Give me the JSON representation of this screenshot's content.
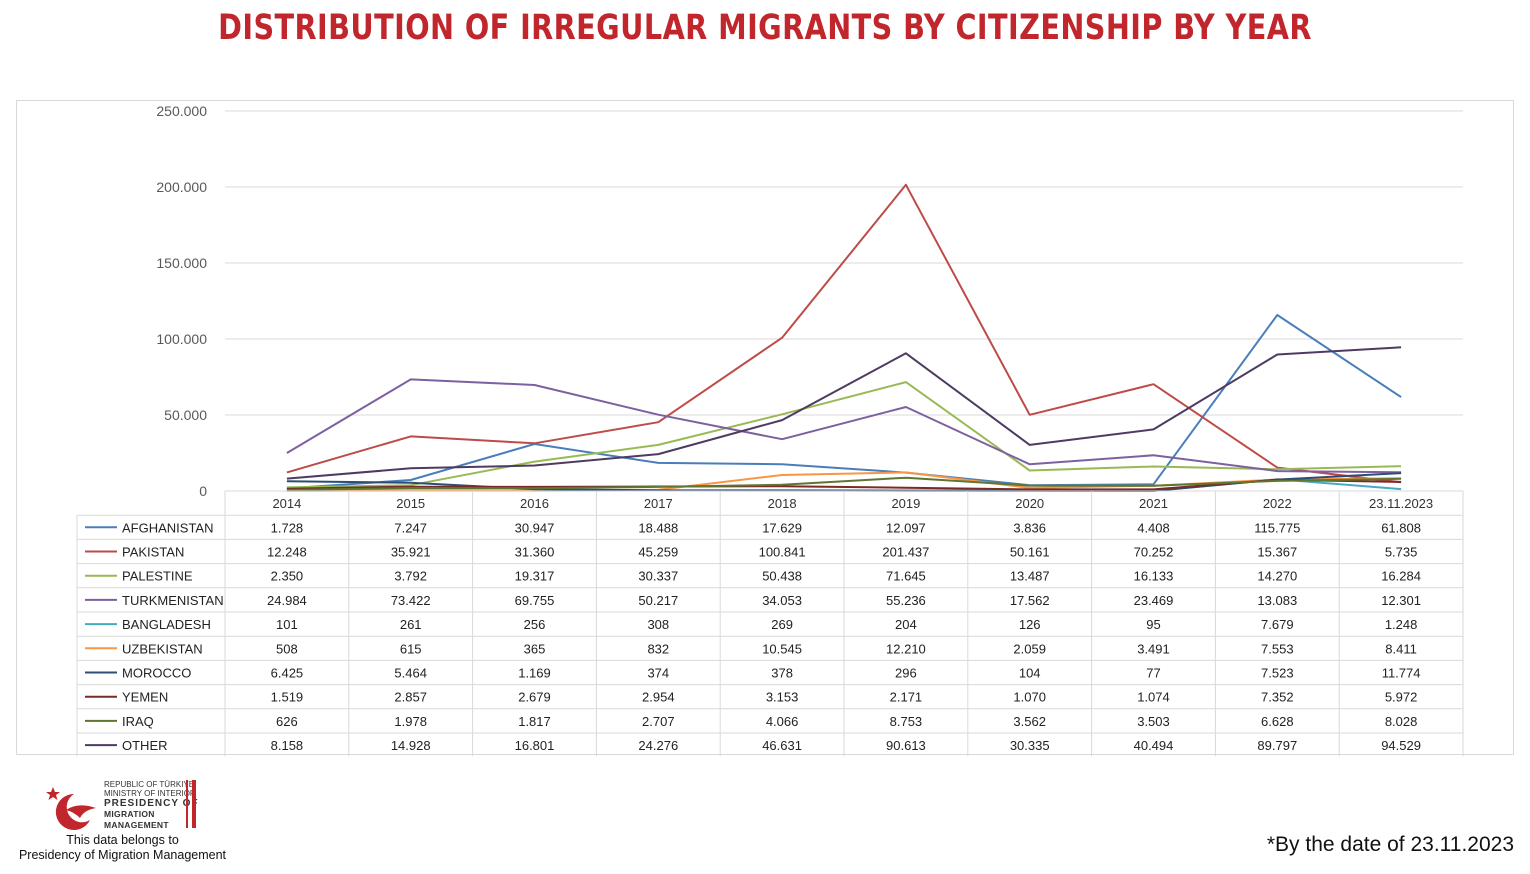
{
  "title": "DISTRIBUTION OF IRREGULAR MIGRANTS BY CITIZENSHIP BY YEAR",
  "footnote": "*By the date of 23.11.2023",
  "credit": {
    "line1": "This data belongs to",
    "line2": "Presidency of Migration Management"
  },
  "logo": {
    "line1": "Republic of Türkiye",
    "line2": "Ministry of Interior",
    "line3": "Presidency of",
    "line4": "Migration Management"
  },
  "chart_data": {
    "type": "line",
    "title": "DISTRIBUTION OF IRREGULAR MIGRANTS BY CITIZENSHIP BY YEAR",
    "categories": [
      "2014",
      "2015",
      "2016",
      "2017",
      "2018",
      "2019",
      "2020",
      "2021",
      "2022",
      "23.11.2023"
    ],
    "ylim": [
      0,
      250000
    ],
    "yticks": [
      0,
      50000,
      100000,
      150000,
      200000,
      250000
    ],
    "ytick_labels": [
      "0",
      "50.000",
      "100.000",
      "150.000",
      "200.000",
      "250.000"
    ],
    "grid": true,
    "legend": "data-table-below",
    "series": [
      {
        "name": "AFGHANISTAN",
        "color": "#4a7ebb",
        "values": [
          1728,
          7247,
          30947,
          18488,
          17629,
          12097,
          3836,
          4408,
          115775,
          61808
        ],
        "labels": [
          "1.728",
          "7.247",
          "30.947",
          "18.488",
          "17.629",
          "12.097",
          "3.836",
          "4.408",
          "115.775",
          "61.808"
        ]
      },
      {
        "name": "PAKISTAN",
        "color": "#be4b48",
        "values": [
          12248,
          35921,
          31360,
          45259,
          100841,
          201437,
          50161,
          70252,
          15367,
          5735
        ],
        "labels": [
          "12.248",
          "35.921",
          "31.360",
          "45.259",
          "100.841",
          "201.437",
          "50.161",
          "70.252",
          "15.367",
          "5.735"
        ]
      },
      {
        "name": "PALESTINE",
        "color": "#98b954",
        "values": [
          2350,
          3792,
          19317,
          30337,
          50438,
          71645,
          13487,
          16133,
          14270,
          16284
        ],
        "labels": [
          "2.350",
          "3.792",
          "19.317",
          "30.337",
          "50.438",
          "71.645",
          "13.487",
          "16.133",
          "14.270",
          "16.284"
        ]
      },
      {
        "name": "TURKMENISTAN",
        "color": "#7d60a0",
        "values": [
          24984,
          73422,
          69755,
          50217,
          34053,
          55236,
          17562,
          23469,
          13083,
          12301
        ],
        "labels": [
          "24.984",
          "73.422",
          "69.755",
          "50.217",
          "34.053",
          "55.236",
          "17.562",
          "23.469",
          "13.083",
          "12.301"
        ]
      },
      {
        "name": "BANGLADESH",
        "color": "#46aac5",
        "values": [
          101,
          261,
          256,
          308,
          269,
          204,
          126,
          95,
          7679,
          1248
        ],
        "labels": [
          "101",
          "261",
          "256",
          "308",
          "269",
          "204",
          "126",
          "95",
          "7.679",
          "1.248"
        ]
      },
      {
        "name": "UZBEKISTAN",
        "color": "#f79646",
        "values": [
          508,
          615,
          365,
          832,
          10545,
          12210,
          2059,
          3491,
          7553,
          8411
        ],
        "labels": [
          "508",
          "615",
          "365",
          "832",
          "10.545",
          "12.210",
          "2.059",
          "3.491",
          "7.553",
          "8.411"
        ]
      },
      {
        "name": "MOROCCO",
        "color": "#2c4d75",
        "values": [
          6425,
          5464,
          1169,
          374,
          378,
          296,
          104,
          77,
          7523,
          11774
        ],
        "labels": [
          "6.425",
          "5.464",
          "1.169",
          "374",
          "378",
          "296",
          "104",
          "77",
          "7.523",
          "11.774"
        ]
      },
      {
        "name": "YEMEN",
        "color": "#772c2a",
        "values": [
          1519,
          2857,
          2679,
          2954,
          3153,
          2171,
          1070,
          1074,
          7352,
          5972
        ],
        "labels": [
          "1.519",
          "2.857",
          "2.679",
          "2.954",
          "3.153",
          "2.171",
          "1.070",
          "1.074",
          "7.352",
          "5.972"
        ]
      },
      {
        "name": "IRAQ",
        "color": "#5f7530",
        "values": [
          626,
          1978,
          1817,
          2707,
          4066,
          8753,
          3562,
          3503,
          6628,
          8028
        ],
        "labels": [
          "626",
          "1.978",
          "1.817",
          "2.707",
          "4.066",
          "8.753",
          "3.562",
          "3.503",
          "6.628",
          "8.028"
        ]
      },
      {
        "name": "OTHER",
        "color": "#4d3b62",
        "values": [
          8158,
          14928,
          16801,
          24276,
          46631,
          90613,
          30335,
          40494,
          89797,
          94529
        ],
        "labels": [
          "8.158",
          "14.928",
          "16.801",
          "24.276",
          "46.631",
          "90.613",
          "30.335",
          "40.494",
          "89.797",
          "94.529"
        ]
      }
    ]
  }
}
